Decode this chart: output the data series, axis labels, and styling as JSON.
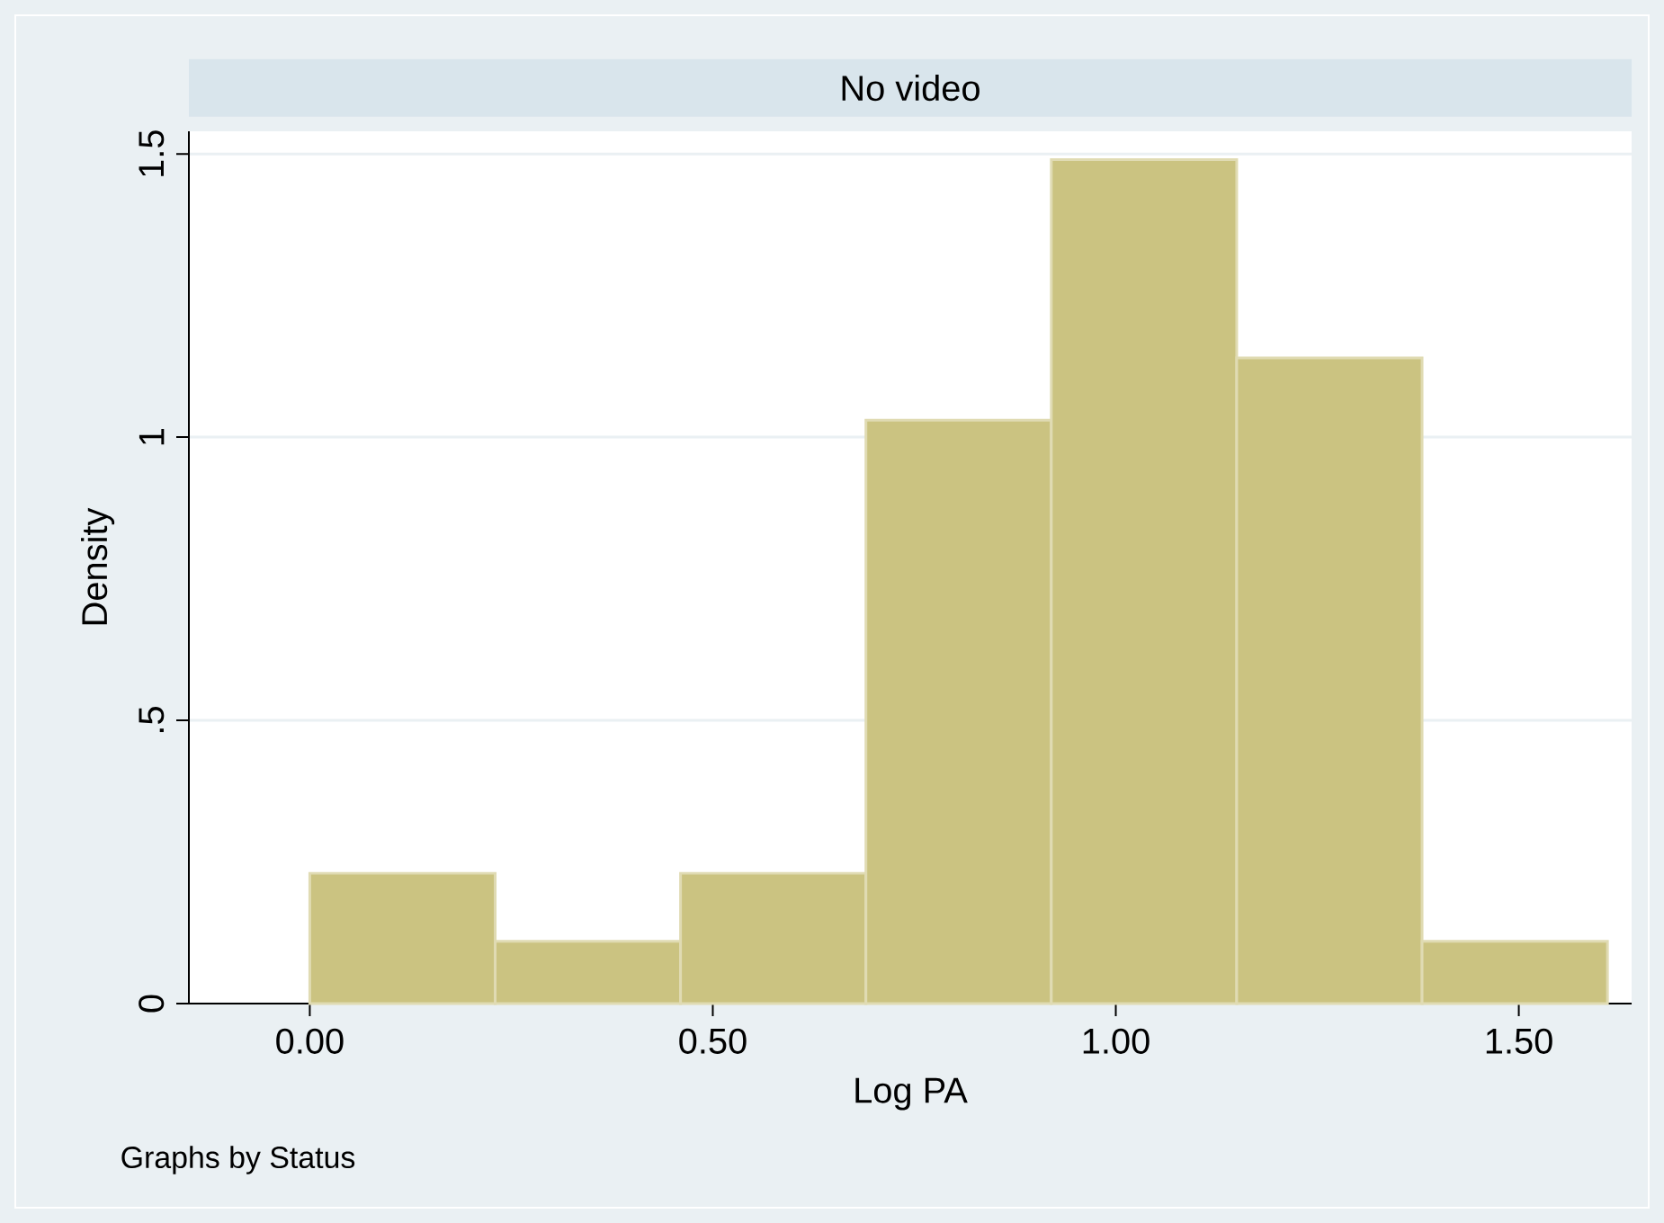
{
  "chart_data": {
    "type": "histogram",
    "title": "No video",
    "xlabel": "Log PA",
    "ylabel": "Density",
    "bins": [
      0,
      0.23,
      0.46,
      0.69,
      0.92,
      1.15,
      1.38,
      1.61
    ],
    "values": [
      0.23,
      0.11,
      0.23,
      1.03,
      1.49,
      1.14,
      0.11
    ],
    "color": "#cbc381",
    "xlim": [
      -0.15,
      1.64
    ],
    "ylim": [
      0,
      1.54
    ],
    "xticks": [
      {
        "value": 0,
        "label": "0.00"
      },
      {
        "value": 0.5,
        "label": "0.50"
      },
      {
        "value": 1,
        "label": "1.00"
      },
      {
        "value": 1.5,
        "label": "1.50"
      }
    ],
    "yticks": [
      0,
      {
        "value": 0.5,
        "label": ".5"
      },
      1,
      1.5
    ],
    "grid": "y",
    "annotations": [
      "Graphs by Status"
    ]
  }
}
